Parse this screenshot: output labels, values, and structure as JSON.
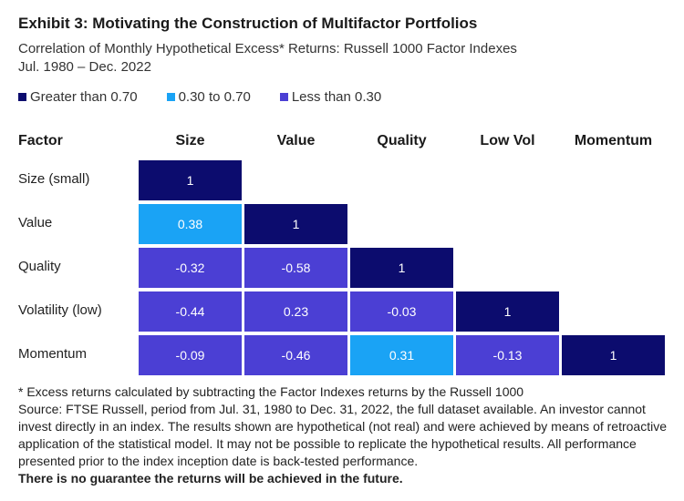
{
  "title": "Exhibit 3: Motivating the Construction of Multifactor Portfolios",
  "subtitle_line1": "Correlation of Monthly Hypothetical Excess* Returns: Russell 1000 Factor Indexes",
  "subtitle_line2": "Jul. 1980 – Dec. 2022",
  "colors": {
    "high": "#0c0c6e",
    "mid": "#1aa3f5",
    "low": "#4b3fd4"
  },
  "legend": [
    {
      "label": "Greater than 0.70",
      "color": "#0c0c6e"
    },
    {
      "label": "0.30 to 0.70",
      "color": "#1aa3f5"
    },
    {
      "label": "Less than 0.30",
      "color": "#4b3fd4"
    }
  ],
  "chart_data": {
    "type": "heatmap",
    "row_header": "Factor",
    "columns": [
      "Size",
      "Value",
      "Quality",
      "Low Vol",
      "Momentum"
    ],
    "rows": [
      "Size (small)",
      "Value",
      "Quality",
      "Volatility (low)",
      "Momentum"
    ],
    "values": [
      [
        "1"
      ],
      [
        "0.38",
        "1"
      ],
      [
        "-0.32",
        "-0.58",
        "1"
      ],
      [
        "-0.44",
        "0.23",
        "-0.03",
        "1"
      ],
      [
        "-0.09",
        "-0.46",
        "0.31",
        "-0.13",
        "1"
      ]
    ]
  },
  "notes": [
    "* Excess returns calculated by subtracting the Factor Indexes returns by the Russell 1000",
    "Source: FTSE Russell, period from Jul. 31, 1980 to Dec. 31, 2022, the full dataset available. An investor cannot invest directly in an index. The results shown are hypothetical (not real) and were achieved by means of retroactive application of the statistical model. It may not be possible to replicate the hypothetical results. All performance presented prior to the index inception date is back-tested performance."
  ],
  "disclaimer": "There is no guarantee the returns will be achieved in the future."
}
